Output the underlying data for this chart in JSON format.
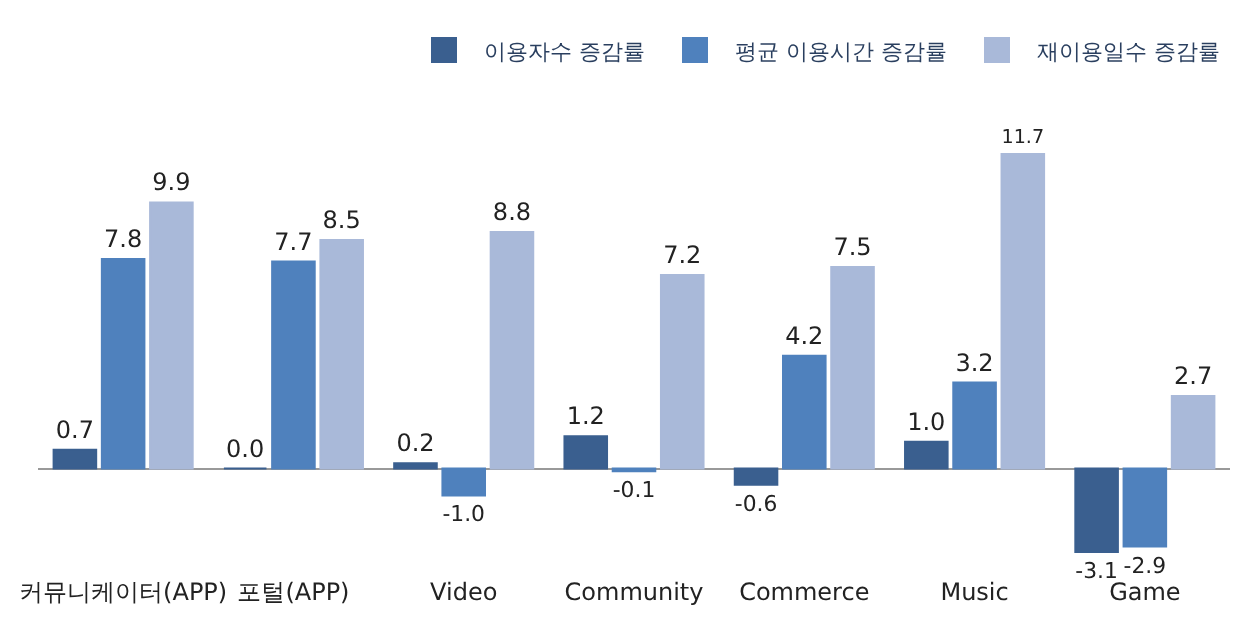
{
  "chart_data": {
    "type": "bar",
    "legend": "top right",
    "categories": [
      "커뮤니케이터(APP)",
      "포털(APP)",
      "Video",
      "Community",
      "Commerce",
      "Music",
      "Game"
    ],
    "series": [
      {
        "name": "이용자수 증감률",
        "color": "#3a5f8f",
        "values": [
          0.7,
          0.0,
          0.2,
          1.2,
          -0.6,
          1.0,
          -3.1
        ],
        "value_labels": [
          "0.7",
          "0.0",
          "0.2",
          "1.2",
          "-0.6",
          "1.0",
          "-3.1"
        ]
      },
      {
        "name": "평균 이용시간 증감률",
        "color": "#4f81bd",
        "values": [
          7.8,
          7.7,
          -1.0,
          -0.1,
          4.2,
          3.2,
          -2.9
        ],
        "value_labels": [
          "7.8",
          "7.7",
          "-1.0",
          "-0.1",
          "4.2",
          "3.2",
          "-2.9"
        ]
      },
      {
        "name": "재이용일수 증감률",
        "color": "#a9b9d9",
        "values": [
          9.9,
          8.5,
          8.8,
          7.2,
          7.5,
          11.7,
          2.7
        ],
        "value_labels": [
          "9.9",
          "8.5",
          "8.8",
          "7.2",
          "7.5",
          "11.7",
          "2.7"
        ]
      }
    ]
  }
}
